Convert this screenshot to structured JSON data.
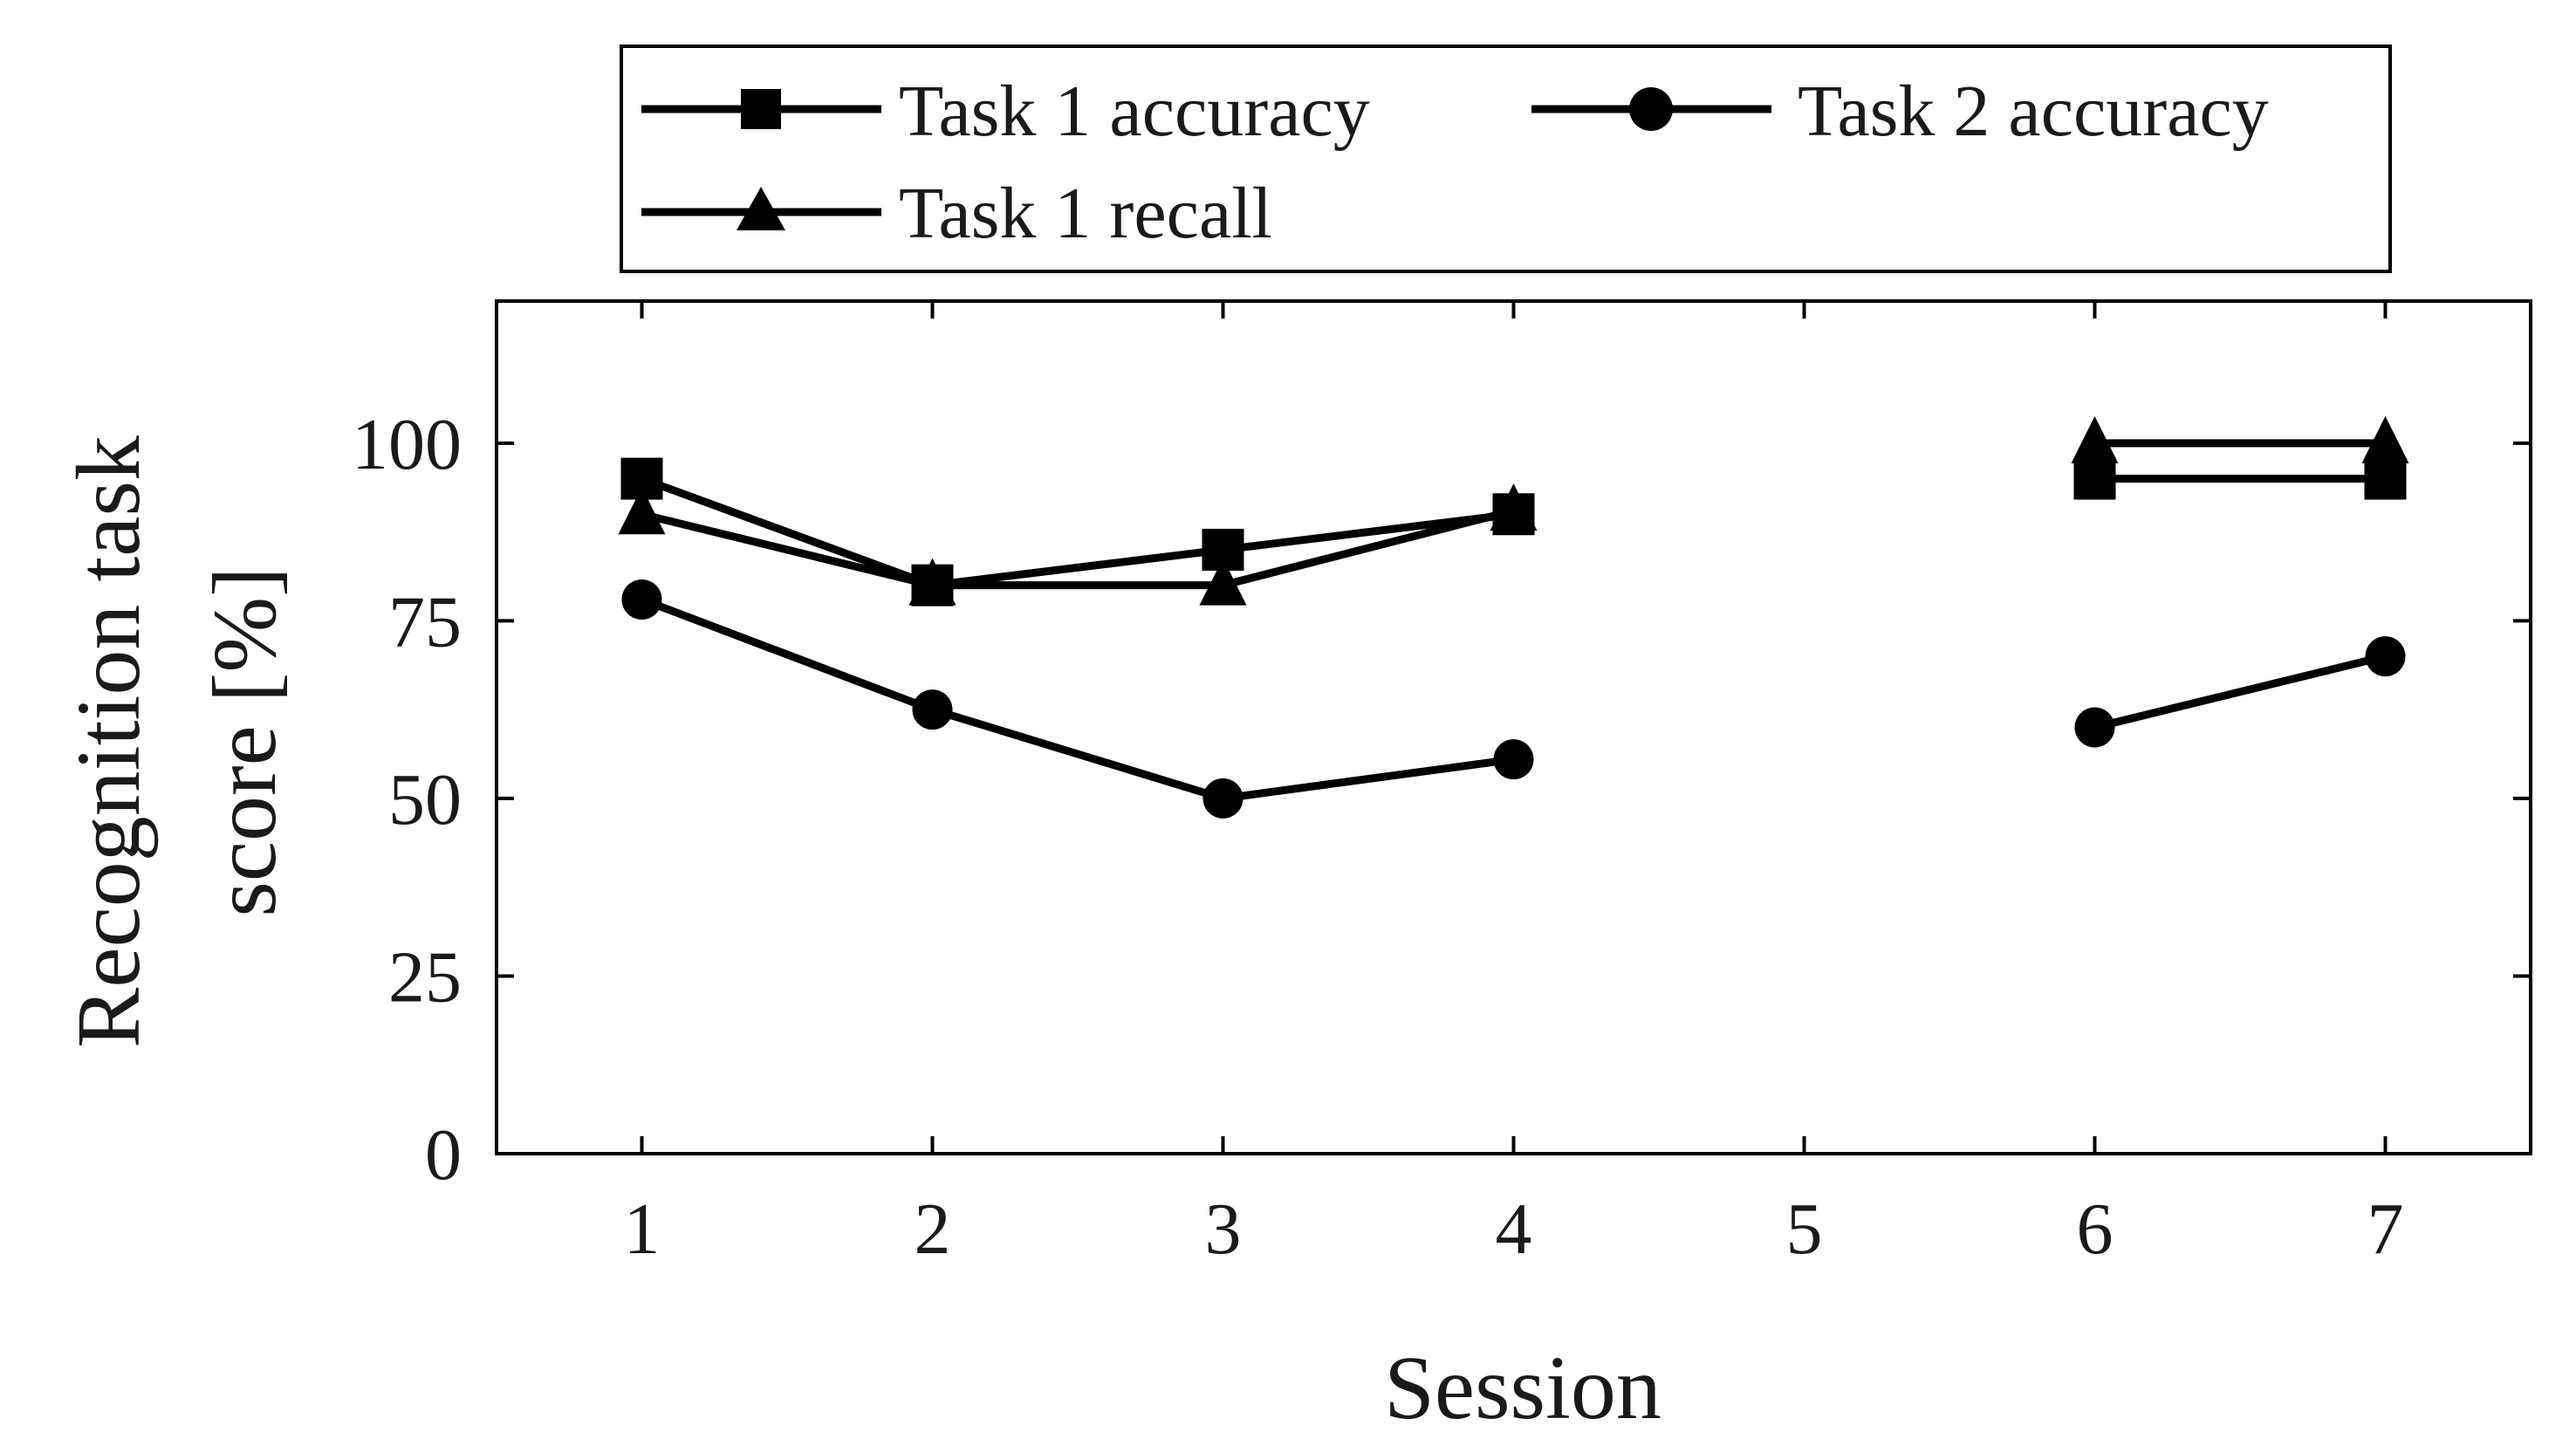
{
  "chart_data": {
    "type": "line",
    "title": "",
    "xlabel": "Session",
    "ylabel_lines": [
      "Recognition task",
      "score [%]"
    ],
    "x_ticks": [
      1,
      2,
      3,
      4,
      5,
      6,
      7
    ],
    "y_ticks": [
      0,
      25,
      50,
      75,
      100
    ],
    "xlim": [
      0.5,
      7.5
    ],
    "ylim": [
      0,
      120
    ],
    "grid": false,
    "legend_position": "top",
    "line_color": "#000000",
    "series": [
      {
        "name": "Task 1 accuracy",
        "marker": "square",
        "x": [
          1,
          2,
          3,
          4,
          null,
          6,
          7
        ],
        "values": [
          95,
          80,
          85,
          90,
          null,
          95,
          95
        ]
      },
      {
        "name": "Task 2 accuracy",
        "marker": "circle",
        "x": [
          1,
          2,
          3,
          4,
          null,
          6,
          7
        ],
        "values": [
          78,
          62.5,
          50,
          55.5,
          null,
          60,
          70
        ]
      },
      {
        "name": "Task 1 recall",
        "marker": "triangle",
        "x": [
          1,
          2,
          3,
          4,
          null,
          6,
          7
        ],
        "values": [
          90,
          80,
          80,
          90.5,
          null,
          100,
          100
        ]
      }
    ]
  }
}
